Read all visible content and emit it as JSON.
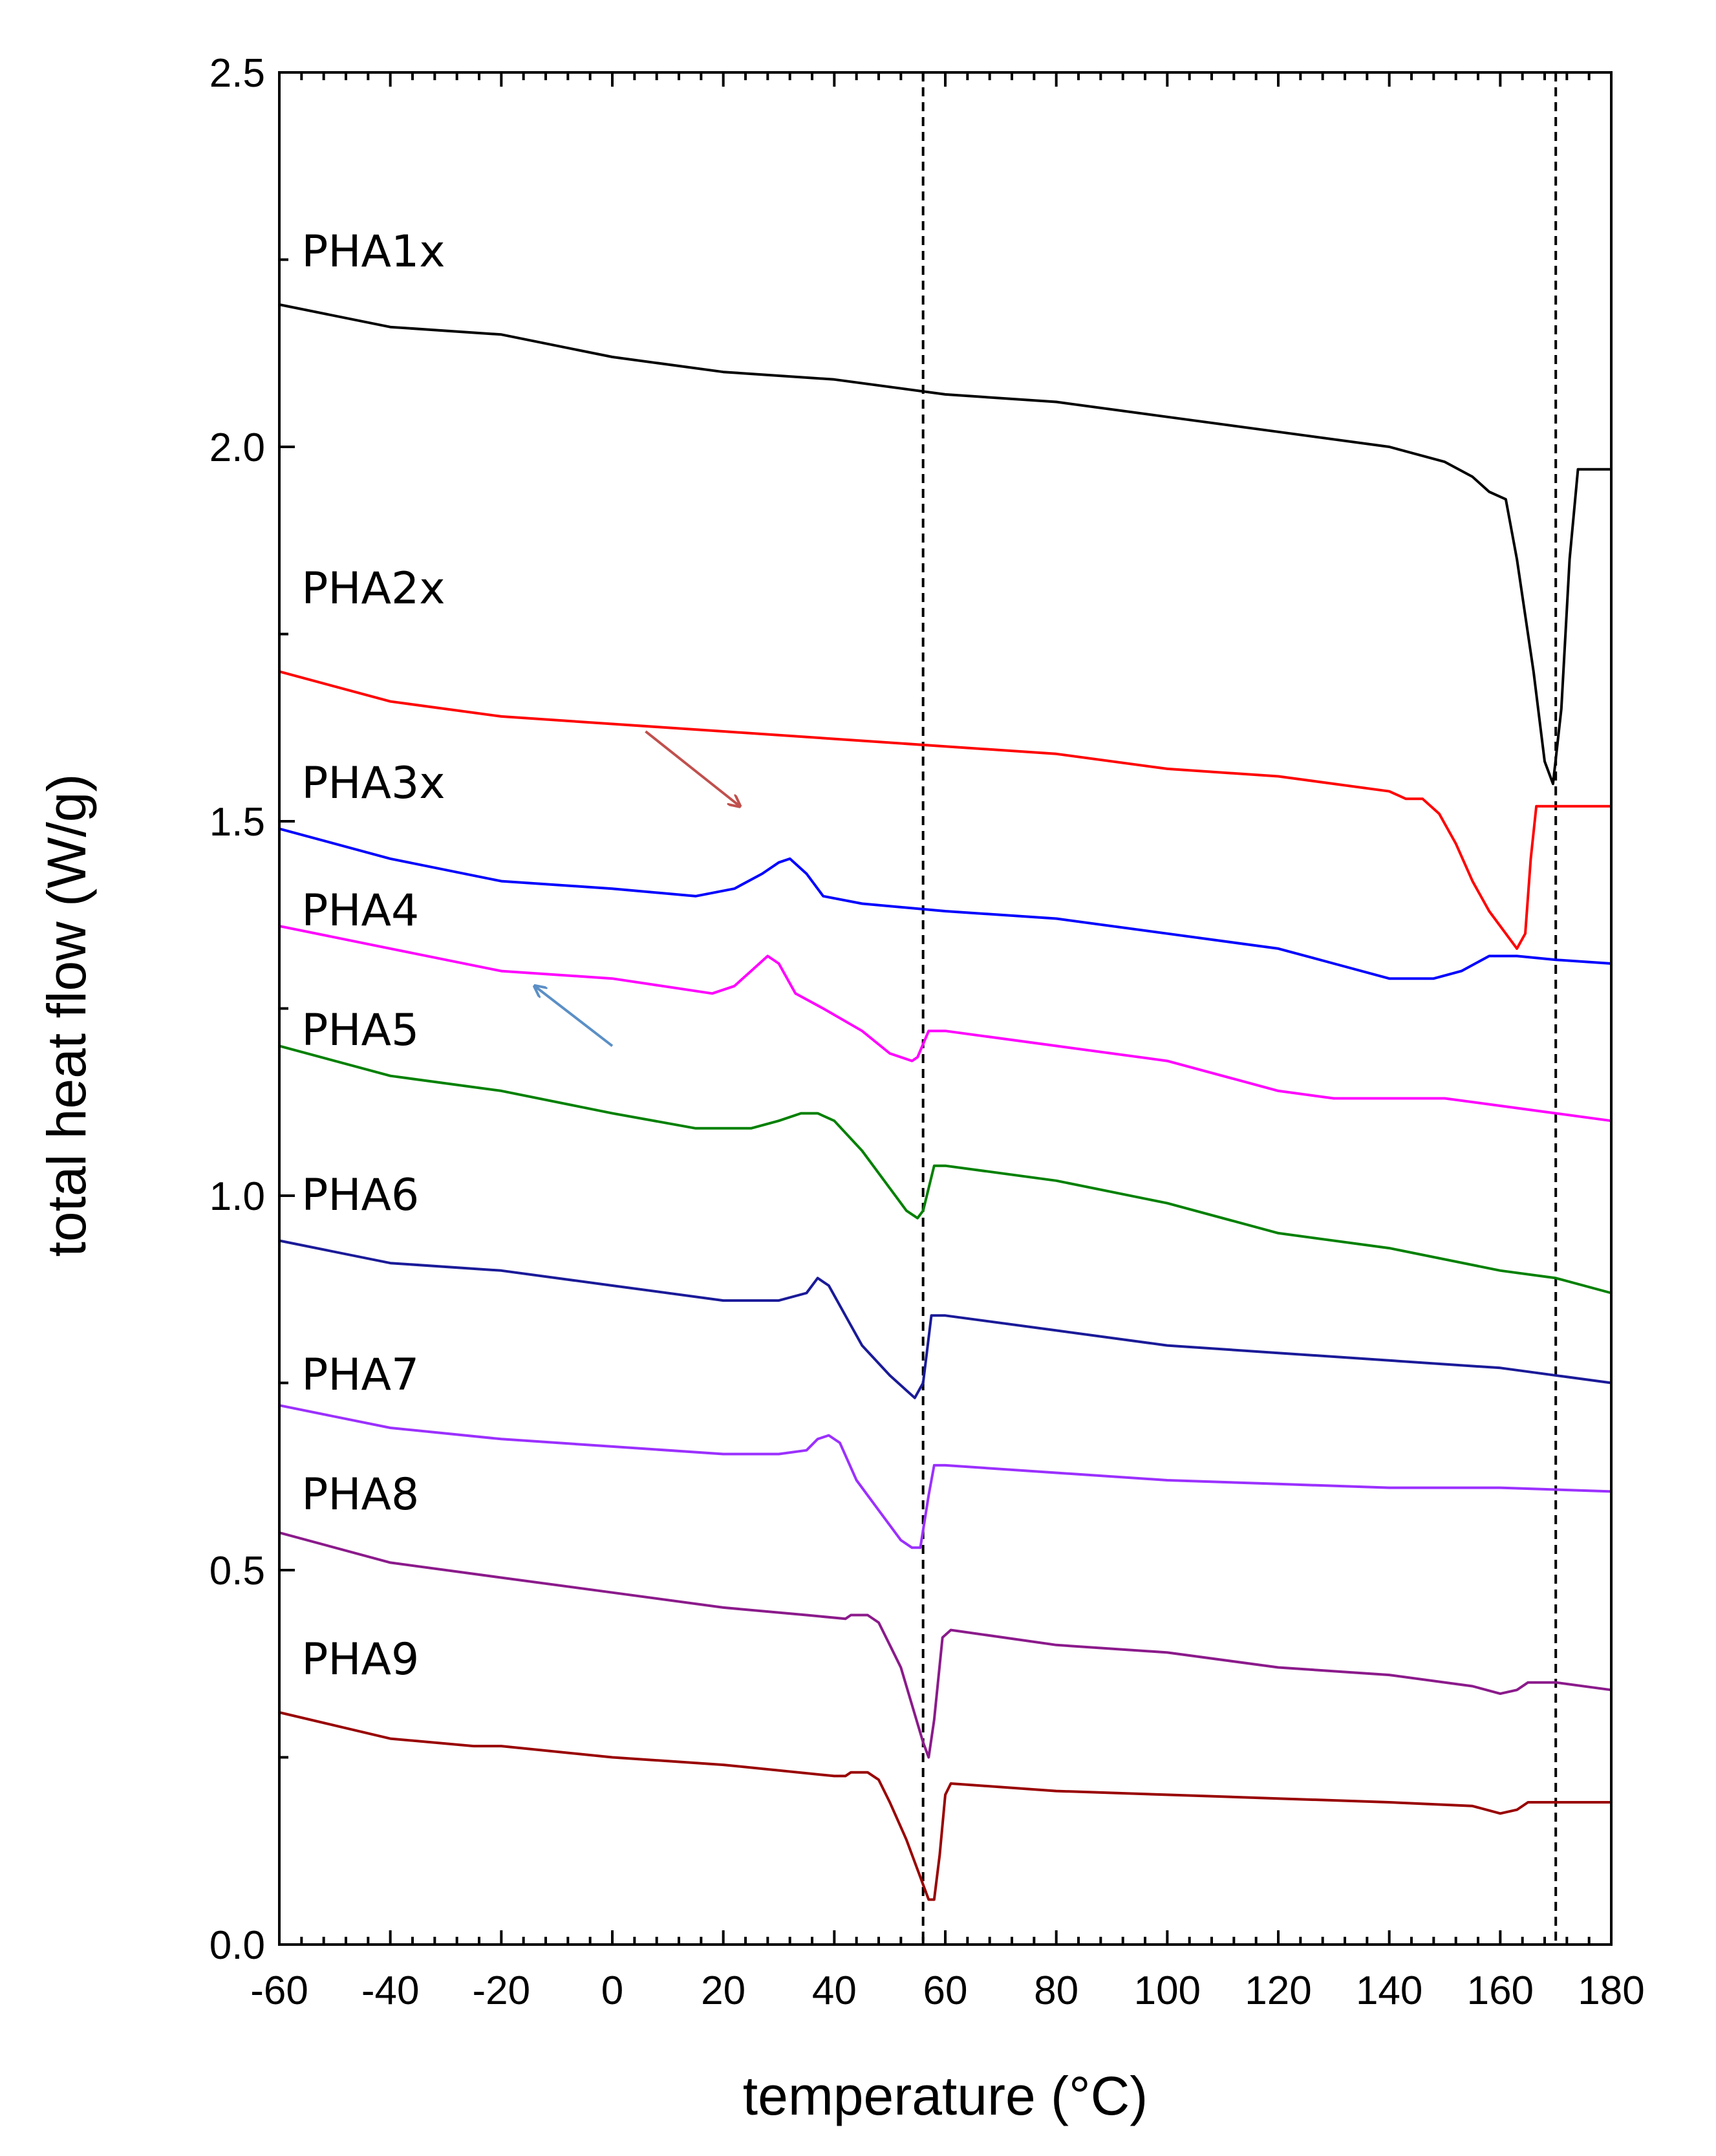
{
  "chart_data": {
    "type": "line",
    "title": "",
    "xlabel": "temperature (°C)",
    "ylabel": "total heat flow (W/g)",
    "xlim": [
      -60,
      180
    ],
    "ylim": [
      0.0,
      2.5
    ],
    "x_ticks": [
      -60,
      -40,
      -20,
      0,
      20,
      40,
      60,
      80,
      100,
      120,
      140,
      160,
      180
    ],
    "x_tick_labels": [
      "-60",
      "-40",
      "-20",
      "0",
      "20",
      "40",
      "60",
      "80",
      "100",
      "120",
      "140",
      "160",
      "180"
    ],
    "y_ticks": [
      0.0,
      0.5,
      1.0,
      1.5,
      2.0,
      2.5
    ],
    "y_tick_labels": [
      "0.0",
      "0.5",
      "1.0",
      "1.5",
      "2.0",
      "2.5"
    ],
    "grid": false,
    "legend": "labels placed beside each curve",
    "reference_lines_x": [
      56,
      170
    ],
    "series": [
      {
        "name": "PHA1x",
        "color": "#000000",
        "label_at": [
          -56,
          2.26
        ],
        "points": [
          [
            -60,
            2.19
          ],
          [
            -40,
            2.16
          ],
          [
            -20,
            2.15
          ],
          [
            0,
            2.12
          ],
          [
            20,
            2.1
          ],
          [
            40,
            2.09
          ],
          [
            60,
            2.07
          ],
          [
            80,
            2.06
          ],
          [
            100,
            2.04
          ],
          [
            120,
            2.02
          ],
          [
            140,
            2.0
          ],
          [
            150,
            1.98
          ],
          [
            155,
            1.96
          ],
          [
            158,
            1.94
          ],
          [
            161,
            1.93
          ],
          [
            163,
            1.85
          ],
          [
            166,
            1.7
          ],
          [
            168,
            1.58
          ],
          [
            169.5,
            1.55
          ],
          [
            171,
            1.65
          ],
          [
            172.5,
            1.85
          ],
          [
            174,
            1.97
          ],
          [
            176,
            1.97
          ],
          [
            180,
            1.97
          ]
        ]
      },
      {
        "name": "PHA2x",
        "color": "#ff0000",
        "label_at": [
          -56,
          1.81
        ],
        "points": [
          [
            -60,
            1.7
          ],
          [
            -40,
            1.66
          ],
          [
            -20,
            1.64
          ],
          [
            0,
            1.63
          ],
          [
            20,
            1.62
          ],
          [
            40,
            1.61
          ],
          [
            60,
            1.6
          ],
          [
            80,
            1.59
          ],
          [
            100,
            1.57
          ],
          [
            120,
            1.56
          ],
          [
            140,
            1.54
          ],
          [
            143,
            1.53
          ],
          [
            146,
            1.53
          ],
          [
            149,
            1.51
          ],
          [
            152,
            1.47
          ],
          [
            155,
            1.42
          ],
          [
            158,
            1.38
          ],
          [
            161,
            1.35
          ],
          [
            163,
            1.33
          ],
          [
            164.5,
            1.35
          ],
          [
            165.5,
            1.45
          ],
          [
            166.5,
            1.52
          ],
          [
            170,
            1.52
          ],
          [
            180,
            1.52
          ]
        ]
      },
      {
        "name": "PHA3x",
        "color": "#0000ff",
        "label_at": [
          -56,
          1.55
        ],
        "points": [
          [
            -60,
            1.49
          ],
          [
            -40,
            1.45
          ],
          [
            -20,
            1.42
          ],
          [
            0,
            1.41
          ],
          [
            15,
            1.4
          ],
          [
            22,
            1.41
          ],
          [
            27,
            1.43
          ],
          [
            30,
            1.445
          ],
          [
            32,
            1.45
          ],
          [
            35,
            1.43
          ],
          [
            38,
            1.4
          ],
          [
            45,
            1.39
          ],
          [
            60,
            1.38
          ],
          [
            80,
            1.37
          ],
          [
            100,
            1.35
          ],
          [
            120,
            1.33
          ],
          [
            130,
            1.31
          ],
          [
            140,
            1.29
          ],
          [
            148,
            1.29
          ],
          [
            153,
            1.3
          ],
          [
            158,
            1.32
          ],
          [
            163,
            1.32
          ],
          [
            170,
            1.315
          ],
          [
            180,
            1.31
          ]
        ]
      },
      {
        "name": "PHA4",
        "color": "#ff00ff",
        "label_at": [
          -56,
          1.38
        ],
        "points": [
          [
            -60,
            1.36
          ],
          [
            -40,
            1.33
          ],
          [
            -20,
            1.3
          ],
          [
            0,
            1.29
          ],
          [
            18,
            1.27
          ],
          [
            22,
            1.28
          ],
          [
            25,
            1.3
          ],
          [
            28,
            1.32
          ],
          [
            30,
            1.31
          ],
          [
            33,
            1.27
          ],
          [
            38,
            1.25
          ],
          [
            45,
            1.22
          ],
          [
            50,
            1.19
          ],
          [
            54,
            1.18
          ],
          [
            55,
            1.185
          ],
          [
            57,
            1.22
          ],
          [
            60,
            1.22
          ],
          [
            80,
            1.2
          ],
          [
            100,
            1.18
          ],
          [
            120,
            1.14
          ],
          [
            130,
            1.13
          ],
          [
            150,
            1.13
          ],
          [
            160,
            1.12
          ],
          [
            170,
            1.11
          ],
          [
            180,
            1.1
          ]
        ]
      },
      {
        "name": "PHA5",
        "color": "#008000",
        "label_at": [
          -56,
          1.22
        ],
        "points": [
          [
            -60,
            1.2
          ],
          [
            -40,
            1.16
          ],
          [
            -20,
            1.14
          ],
          [
            0,
            1.11
          ],
          [
            15,
            1.09
          ],
          [
            25,
            1.09
          ],
          [
            30,
            1.1
          ],
          [
            34,
            1.11
          ],
          [
            37,
            1.11
          ],
          [
            40,
            1.1
          ],
          [
            45,
            1.06
          ],
          [
            50,
            1.01
          ],
          [
            53,
            0.98
          ],
          [
            55,
            0.97
          ],
          [
            56,
            0.98
          ],
          [
            58,
            1.04
          ],
          [
            60,
            1.04
          ],
          [
            80,
            1.02
          ],
          [
            100,
            0.99
          ],
          [
            120,
            0.95
          ],
          [
            140,
            0.93
          ],
          [
            160,
            0.9
          ],
          [
            170,
            0.89
          ],
          [
            180,
            0.87
          ]
        ]
      },
      {
        "name": "PHA6",
        "color": "#1a1a99",
        "label_at": [
          -56,
          1.0
        ],
        "points": [
          [
            -60,
            0.94
          ],
          [
            -40,
            0.91
          ],
          [
            -20,
            0.9
          ],
          [
            0,
            0.88
          ],
          [
            20,
            0.86
          ],
          [
            30,
            0.86
          ],
          [
            35,
            0.87
          ],
          [
            37,
            0.89
          ],
          [
            39,
            0.88
          ],
          [
            42,
            0.84
          ],
          [
            45,
            0.8
          ],
          [
            50,
            0.76
          ],
          [
            53,
            0.74
          ],
          [
            54.5,
            0.73
          ],
          [
            56,
            0.75
          ],
          [
            57.5,
            0.84
          ],
          [
            60,
            0.84
          ],
          [
            80,
            0.82
          ],
          [
            100,
            0.8
          ],
          [
            120,
            0.79
          ],
          [
            140,
            0.78
          ],
          [
            160,
            0.77
          ],
          [
            180,
            0.75
          ]
        ]
      },
      {
        "name": "PHA7",
        "color": "#9b30ff",
        "label_at": [
          -56,
          0.76
        ],
        "points": [
          [
            -60,
            0.72
          ],
          [
            -40,
            0.69
          ],
          [
            -20,
            0.675
          ],
          [
            0,
            0.665
          ],
          [
            20,
            0.655
          ],
          [
            30,
            0.655
          ],
          [
            35,
            0.66
          ],
          [
            37,
            0.675
          ],
          [
            39,
            0.68
          ],
          [
            41,
            0.67
          ],
          [
            44,
            0.62
          ],
          [
            48,
            0.58
          ],
          [
            52,
            0.54
          ],
          [
            54,
            0.53
          ],
          [
            55.5,
            0.53
          ],
          [
            57,
            0.6
          ],
          [
            58,
            0.64
          ],
          [
            60,
            0.64
          ],
          [
            80,
            0.63
          ],
          [
            100,
            0.62
          ],
          [
            120,
            0.615
          ],
          [
            140,
            0.61
          ],
          [
            160,
            0.61
          ],
          [
            180,
            0.605
          ]
        ]
      },
      {
        "name": "PHA8",
        "color": "#8b1a8b",
        "label_at": [
          -56,
          0.6
        ],
        "points": [
          [
            -60,
            0.55
          ],
          [
            -40,
            0.51
          ],
          [
            -20,
            0.49
          ],
          [
            0,
            0.47
          ],
          [
            20,
            0.45
          ],
          [
            35,
            0.44
          ],
          [
            42,
            0.435
          ],
          [
            43,
            0.44
          ],
          [
            46,
            0.44
          ],
          [
            48,
            0.43
          ],
          [
            50,
            0.4
          ],
          [
            52,
            0.37
          ],
          [
            54,
            0.32
          ],
          [
            56,
            0.27
          ],
          [
            57,
            0.25
          ],
          [
            58,
            0.3
          ],
          [
            59.5,
            0.41
          ],
          [
            61,
            0.42
          ],
          [
            80,
            0.4
          ],
          [
            100,
            0.39
          ],
          [
            120,
            0.37
          ],
          [
            140,
            0.36
          ],
          [
            155,
            0.345
          ],
          [
            160,
            0.335
          ],
          [
            163,
            0.34
          ],
          [
            165,
            0.35
          ],
          [
            170,
            0.35
          ],
          [
            180,
            0.34
          ]
        ]
      },
      {
        "name": "PHA9",
        "color": "#990000",
        "label_at": [
          -56,
          0.38
        ],
        "points": [
          [
            -60,
            0.31
          ],
          [
            -40,
            0.275
          ],
          [
            -25,
            0.265
          ],
          [
            -20,
            0.265
          ],
          [
            0,
            0.25
          ],
          [
            20,
            0.24
          ],
          [
            40,
            0.225
          ],
          [
            42,
            0.225
          ],
          [
            43,
            0.23
          ],
          [
            46,
            0.23
          ],
          [
            48,
            0.22
          ],
          [
            50,
            0.19
          ],
          [
            53,
            0.14
          ],
          [
            55,
            0.1
          ],
          [
            57,
            0.06
          ],
          [
            58,
            0.06
          ],
          [
            59,
            0.12
          ],
          [
            60,
            0.2
          ],
          [
            61,
            0.215
          ],
          [
            80,
            0.205
          ],
          [
            100,
            0.2
          ],
          [
            120,
            0.195
          ],
          [
            140,
            0.19
          ],
          [
            155,
            0.185
          ],
          [
            160,
            0.175
          ],
          [
            163,
            0.18
          ],
          [
            165,
            0.19
          ],
          [
            170,
            0.19
          ],
          [
            180,
            0.19
          ]
        ]
      }
    ],
    "annotations": [
      {
        "type": "arrow",
        "color": "#c0504d",
        "from": [
          6,
          1.62
        ],
        "to": [
          23,
          1.52
        ]
      },
      {
        "type": "arrow",
        "color": "#5b8fc6",
        "from": [
          0,
          1.2
        ],
        "to": [
          -14,
          1.28
        ]
      }
    ]
  }
}
